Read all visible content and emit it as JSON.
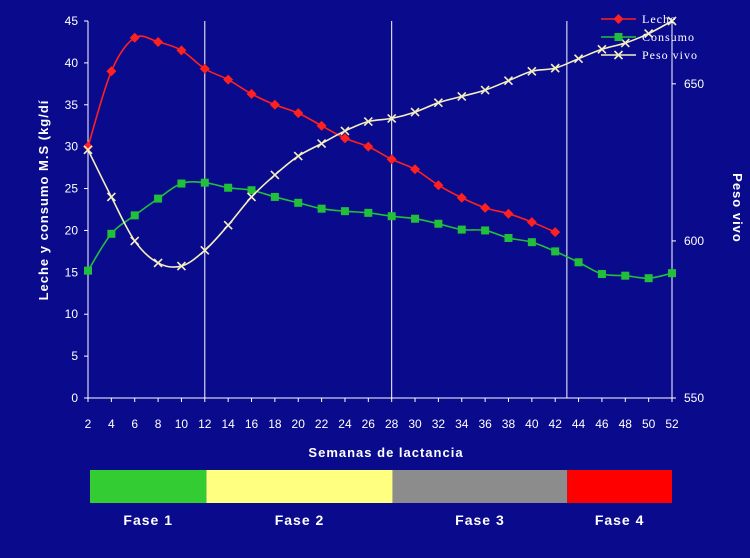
{
  "chart_data": {
    "type": "line",
    "xlabel": "Semanas de lactancia",
    "ylabel_left": "Leche y consumo M.S (kg/dí",
    "ylabel_right": "Peso vivo",
    "x_ticks": [
      2,
      4,
      6,
      8,
      10,
      12,
      14,
      16,
      18,
      20,
      22,
      24,
      26,
      28,
      30,
      32,
      34,
      36,
      38,
      40,
      42,
      44,
      46,
      48,
      50,
      52
    ],
    "xlim": [
      2,
      52
    ],
    "ylim_left": [
      0,
      45
    ],
    "ylim_right": [
      550,
      670
    ],
    "left_ticks": [
      0,
      5,
      10,
      15,
      20,
      25,
      30,
      35,
      40,
      45
    ],
    "right_ticks": [
      550,
      600,
      650
    ],
    "phase_dividers": [
      12,
      28,
      43
    ],
    "grid": false,
    "legend_position": "top-right",
    "series": [
      {
        "name": "Leche",
        "axis": "left",
        "color": "#ff2020",
        "marker": "diamond",
        "x": [
          2,
          4,
          6,
          8,
          10,
          12,
          14,
          16,
          18,
          20,
          22,
          24,
          26,
          28,
          30,
          32,
          34,
          36,
          38,
          40,
          42
        ],
        "values": [
          30,
          39,
          43,
          42.5,
          41.5,
          39.3,
          38,
          36.3,
          35,
          34,
          32.5,
          31,
          30,
          28.5,
          27.3,
          25.4,
          23.9,
          22.7,
          22,
          21,
          19.8
        ]
      },
      {
        "name": "Consumo",
        "axis": "left",
        "color": "#22c03a",
        "marker": "square",
        "x": [
          2,
          4,
          6,
          8,
          10,
          12,
          14,
          16,
          18,
          20,
          22,
          24,
          26,
          28,
          30,
          32,
          34,
          36,
          38,
          40,
          42,
          44,
          46,
          48,
          50,
          52
        ],
        "values": [
          15.2,
          19.6,
          21.8,
          23.8,
          25.6,
          25.7,
          25.1,
          24.8,
          24,
          23.3,
          22.6,
          22.3,
          22.1,
          21.7,
          21.4,
          20.8,
          20.1,
          20,
          19.1,
          18.6,
          17.5,
          16.2,
          14.8,
          14.6,
          14.3,
          14.9
        ]
      },
      {
        "name": "Peso vivo",
        "axis": "right",
        "color": "#f5f0c0",
        "marker": "x",
        "x": [
          2,
          4,
          6,
          8,
          10,
          12,
          14,
          16,
          18,
          20,
          22,
          24,
          26,
          28,
          30,
          32,
          34,
          36,
          38,
          40,
          42,
          44,
          46,
          48,
          50,
          52
        ],
        "values": [
          629,
          614,
          600,
          593,
          592,
          597,
          605,
          614,
          621,
          627,
          631,
          635,
          638,
          639,
          641,
          644,
          646,
          648,
          651,
          654,
          655,
          658,
          661,
          663,
          666,
          670
        ]
      }
    ],
    "phases": [
      {
        "label": "Fase 1",
        "color": "#33cc33",
        "from": 2,
        "to": 12
      },
      {
        "label": "Fase 2",
        "color": "#ffff80",
        "from": 12,
        "to": 28
      },
      {
        "label": "Fase 3",
        "color": "#8c8c8c",
        "from": 28,
        "to": 43
      },
      {
        "label": "Fase 4",
        "color": "#ff0000",
        "from": 43,
        "to": 52
      }
    ]
  }
}
